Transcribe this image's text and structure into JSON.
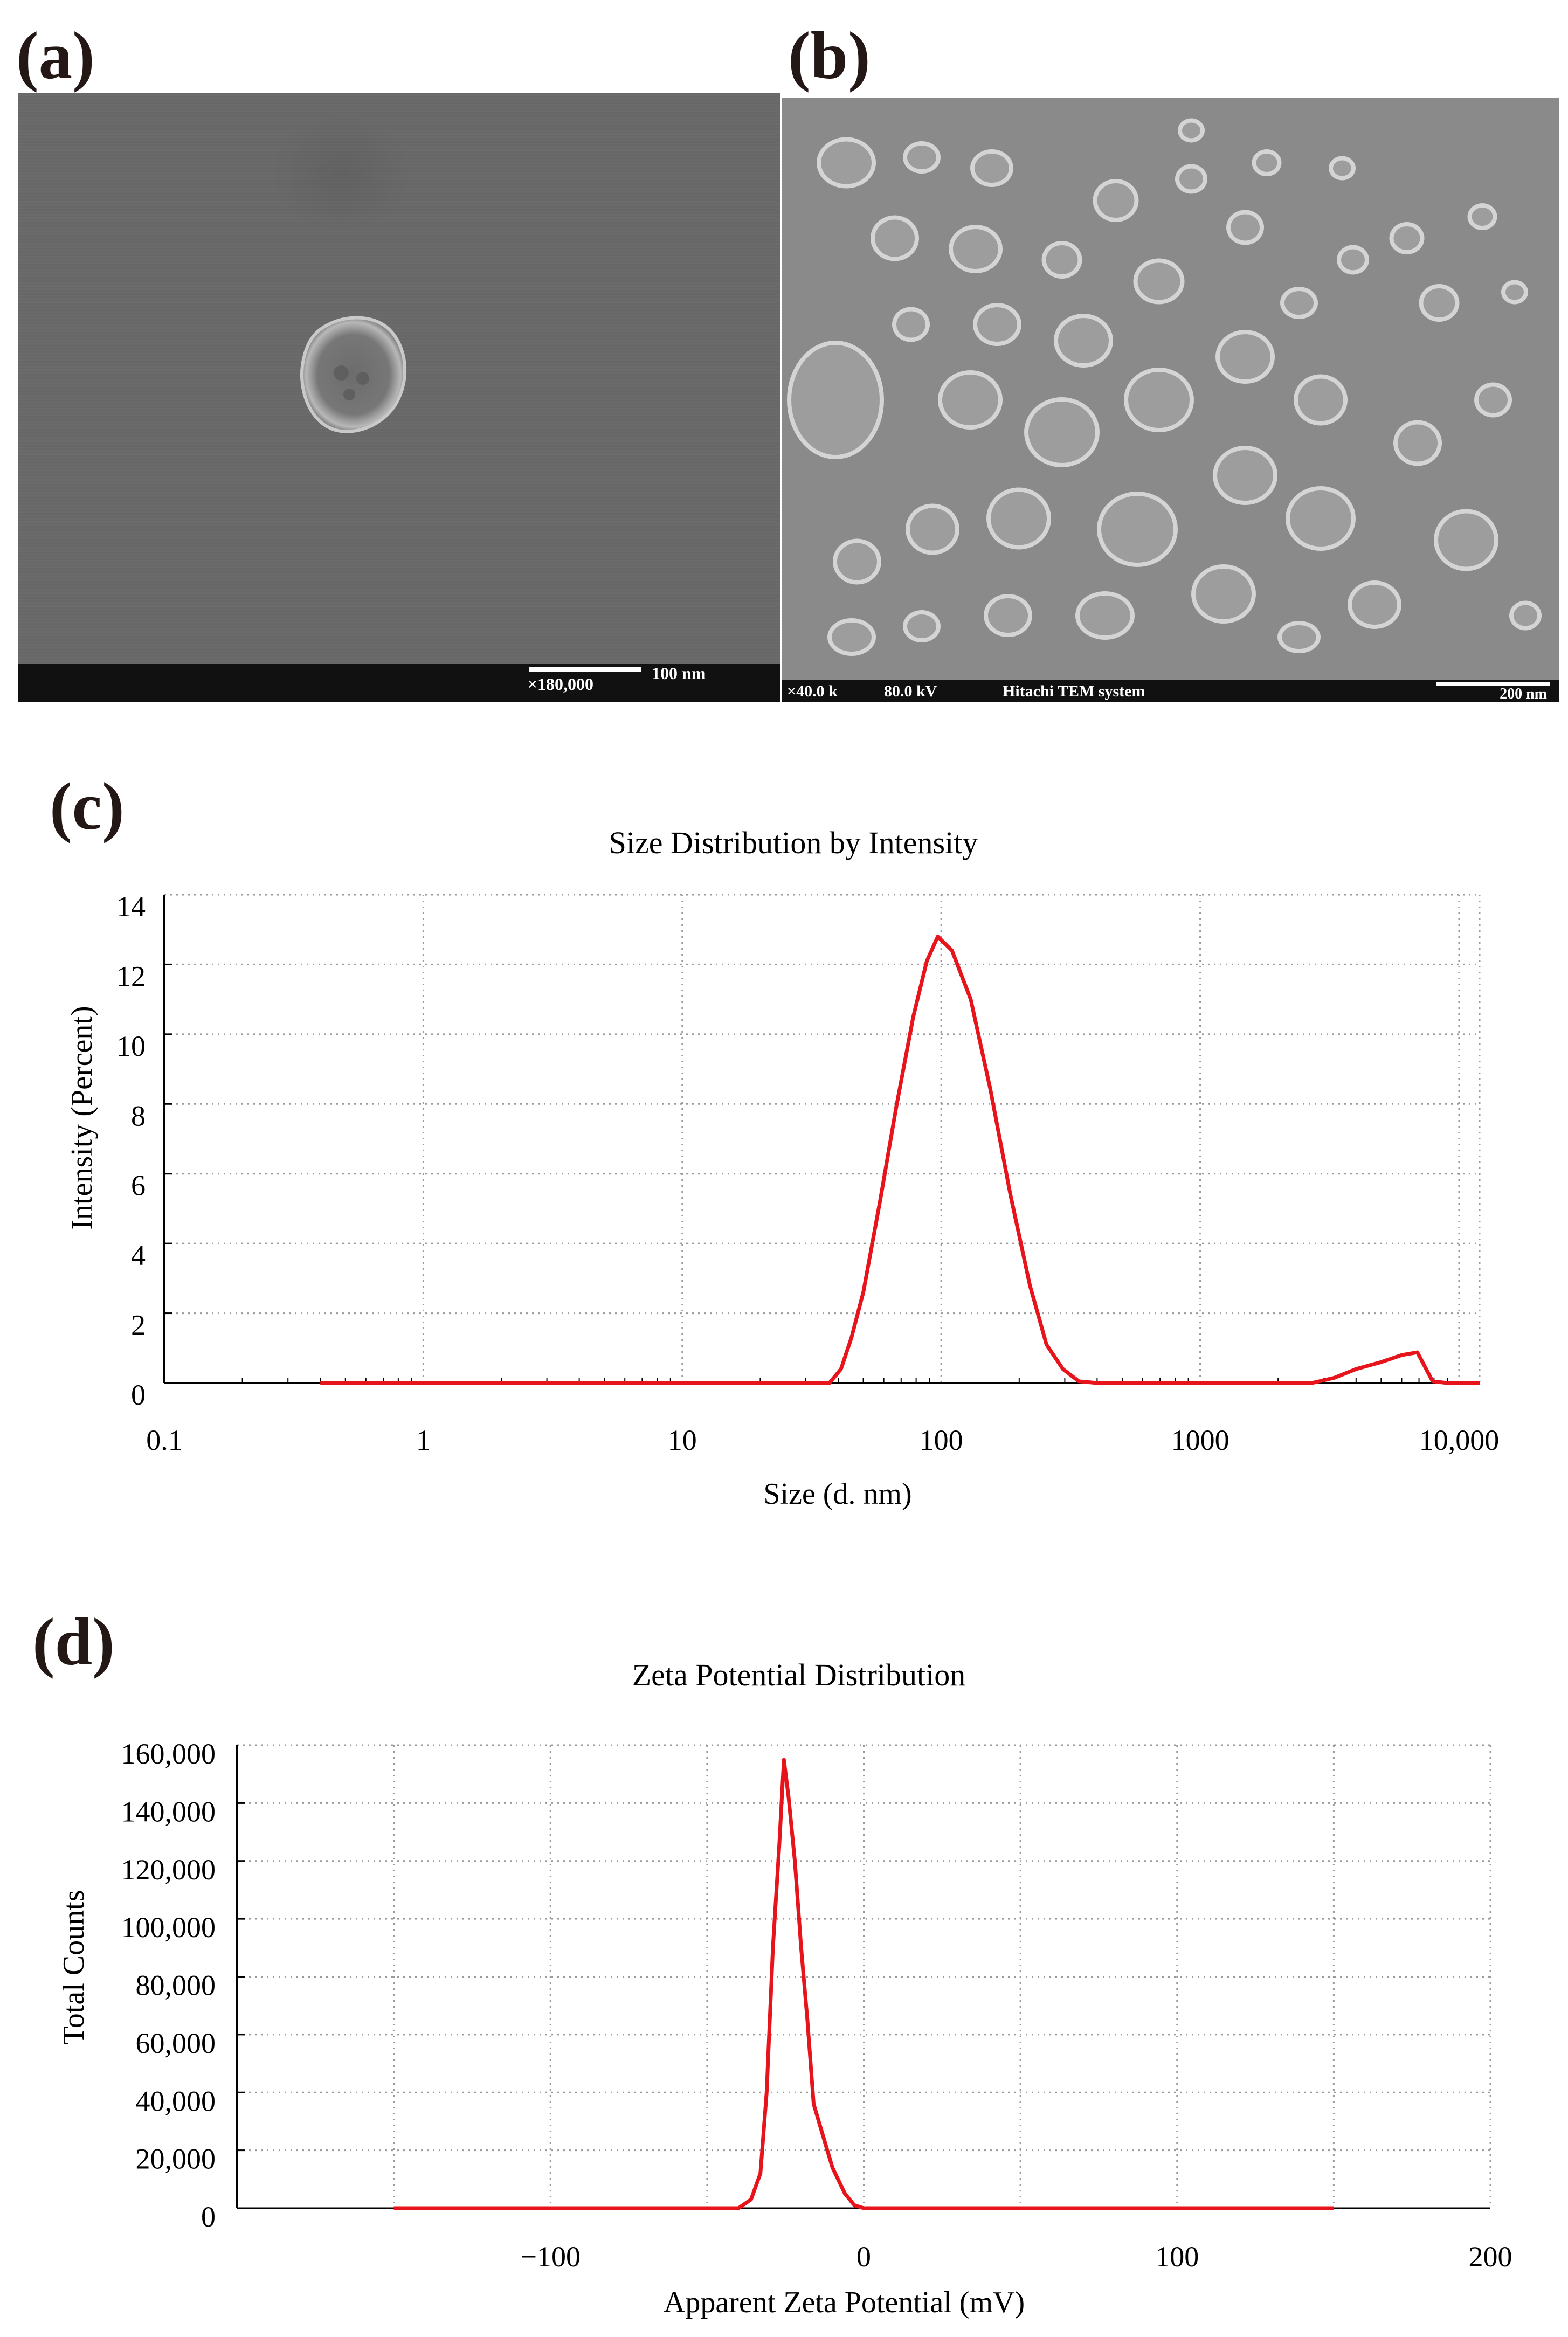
{
  "panels": {
    "a": {
      "letter": "(a)",
      "magnification": "×180,000",
      "scale_label": "100 nm"
    },
    "b": {
      "letter": "(b)",
      "magnification": "×40.0 k",
      "voltage": "80.0 kV",
      "instrument": "Hitachi TEM system",
      "scale_label": "200 nm"
    },
    "c": {
      "letter": "(c)"
    },
    "d": {
      "letter": "(d)"
    }
  },
  "colors": {
    "curve": "#e8141b",
    "grid": "#9a9a9a",
    "axis": "#000000"
  },
  "chart_data": [
    {
      "type": "line",
      "title": "Size Distribution by Intensity",
      "xlabel": "Size (d. nm)",
      "ylabel": "Intensity (Percent)",
      "xscale": "log",
      "xlim": [
        0.1,
        12000
      ],
      "ylim": [
        0,
        14
      ],
      "x_ticks": [
        0.1,
        1,
        10,
        100,
        1000,
        10000
      ],
      "x_tick_labels": [
        "0.1",
        "1",
        "10",
        "100",
        "1000",
        "10,000"
      ],
      "y_ticks": [
        0,
        2,
        4,
        6,
        8,
        10,
        12,
        14
      ],
      "y_tick_labels": [
        "0",
        "2",
        "4",
        "6",
        "8",
        "10",
        "12",
        "14"
      ],
      "grid": true,
      "series": [
        {
          "x": [
            0.4,
            10,
            37,
            41,
            45,
            50,
            58,
            67,
            78,
            88,
            97,
            110,
            130,
            155,
            185,
            220,
            255,
            295,
            340,
            400,
            1000,
            2700,
            3300,
            4000,
            5000,
            6000,
            6900,
            7900,
            9000,
            12000
          ],
          "y": [
            0,
            0,
            0,
            0.4,
            1.3,
            2.6,
            5.2,
            7.9,
            10.5,
            12.1,
            12.8,
            12.4,
            11.0,
            8.4,
            5.4,
            2.8,
            1.1,
            0.4,
            0.05,
            0,
            0,
            0,
            0.15,
            0.4,
            0.6,
            0.8,
            0.88,
            0.05,
            0,
            0
          ]
        }
      ]
    },
    {
      "type": "line",
      "title": "Zeta Potential Distribution",
      "xlabel": "Apparent Zeta Potential (mV)",
      "ylabel": "Total Counts",
      "xlim": [
        -200,
        200
      ],
      "ylim": [
        0,
        160000
      ],
      "x_ticks": [
        -100,
        0,
        100,
        200
      ],
      "x_tick_labels": [
        "−100",
        "0",
        "100",
        "200"
      ],
      "x_grid": [
        -150,
        -100,
        -50,
        0,
        50,
        100,
        150,
        200
      ],
      "y_ticks": [
        0,
        20000,
        40000,
        60000,
        80000,
        100000,
        120000,
        140000,
        160000
      ],
      "y_tick_labels": [
        "0",
        "20,000",
        "40,000",
        "60,000",
        "80,000",
        "100,000",
        "120,000",
        "140,000",
        "160,000"
      ],
      "grid": true,
      "series": [
        {
          "x": [
            -150,
            -40,
            -36,
            -33,
            -31,
            -29,
            -27,
            -25.5,
            -24,
            -22,
            -20,
            -18,
            -16,
            -13,
            -10,
            -6,
            -3,
            0,
            150
          ],
          "y": [
            0,
            0,
            3000,
            12000,
            40000,
            90000,
            125000,
            155000,
            142000,
            120000,
            90000,
            65000,
            36000,
            25000,
            14000,
            5000,
            1000,
            0,
            0
          ]
        }
      ]
    }
  ]
}
